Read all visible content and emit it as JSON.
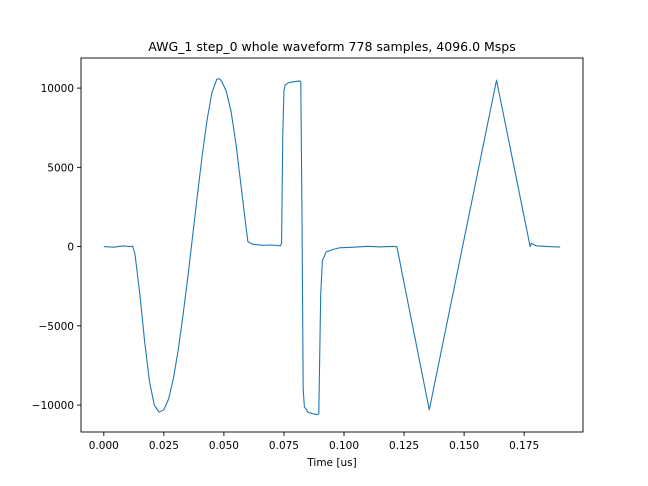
{
  "chart_data": {
    "type": "line",
    "title": "AWG_1 step_0 whole waveform 778 samples, 4096.0 Msps",
    "xlabel": "Time [us]",
    "ylabel": "",
    "xlim": [
      -0.0095,
      0.1995
    ],
    "ylim": [
      -11700,
      11900
    ],
    "x_ticks": [
      {
        "value": 0.0,
        "label": "0.000"
      },
      {
        "value": 0.025,
        "label": "0.025"
      },
      {
        "value": 0.05,
        "label": "0.050"
      },
      {
        "value": 0.075,
        "label": "0.075"
      },
      {
        "value": 0.1,
        "label": "0.100"
      },
      {
        "value": 0.125,
        "label": "0.125"
      },
      {
        "value": 0.15,
        "label": "0.150"
      },
      {
        "value": 0.175,
        "label": "0.175"
      }
    ],
    "y_ticks": [
      {
        "value": 10000,
        "label": "10000"
      },
      {
        "value": 5000,
        "label": "5000"
      },
      {
        "value": 0,
        "label": "0"
      },
      {
        "value": -5000,
        "label": "−5000"
      },
      {
        "value": -10000,
        "label": "−10000"
      }
    ],
    "grid": false,
    "series": [
      {
        "color": "#1f77b4",
        "points": [
          [
            0.0,
            0
          ],
          [
            0.004,
            -40
          ],
          [
            0.008,
            40
          ],
          [
            0.011,
            0
          ],
          [
            0.012,
            30
          ],
          [
            0.013,
            -500
          ],
          [
            0.015,
            -3000
          ],
          [
            0.017,
            -6000
          ],
          [
            0.019,
            -8500
          ],
          [
            0.021,
            -10000
          ],
          [
            0.023,
            -10450
          ],
          [
            0.025,
            -10300
          ],
          [
            0.027,
            -9600
          ],
          [
            0.029,
            -8300
          ],
          [
            0.031,
            -6500
          ],
          [
            0.033,
            -4300
          ],
          [
            0.035,
            -1900
          ],
          [
            0.037,
            700
          ],
          [
            0.039,
            3300
          ],
          [
            0.041,
            5800
          ],
          [
            0.043,
            8000
          ],
          [
            0.045,
            9700
          ],
          [
            0.047,
            10550
          ],
          [
            0.048,
            10600
          ],
          [
            0.049,
            10450
          ],
          [
            0.051,
            9800
          ],
          [
            0.053,
            8500
          ],
          [
            0.055,
            6500
          ],
          [
            0.057,
            4000
          ],
          [
            0.059,
            1500
          ],
          [
            0.06,
            300
          ],
          [
            0.062,
            150
          ],
          [
            0.066,
            80
          ],
          [
            0.07,
            100
          ],
          [
            0.0735,
            50
          ],
          [
            0.074,
            200
          ],
          [
            0.0745,
            7000
          ],
          [
            0.075,
            9800
          ],
          [
            0.0755,
            10200
          ],
          [
            0.077,
            10350
          ],
          [
            0.079,
            10400
          ],
          [
            0.0815,
            10450
          ],
          [
            0.082,
            10400
          ],
          [
            0.0825,
            2000
          ],
          [
            0.083,
            -9000
          ],
          [
            0.0835,
            -10100
          ],
          [
            0.085,
            -10450
          ],
          [
            0.087,
            -10550
          ],
          [
            0.089,
            -10600
          ],
          [
            0.0895,
            -10550
          ],
          [
            0.0903,
            -3000
          ],
          [
            0.091,
            -900
          ],
          [
            0.0925,
            -350
          ],
          [
            0.095,
            -200
          ],
          [
            0.098,
            -80
          ],
          [
            0.105,
            -30
          ],
          [
            0.11,
            20
          ],
          [
            0.115,
            -20
          ],
          [
            0.12,
            10
          ],
          [
            0.122,
            0
          ],
          [
            0.1355,
            -10300
          ],
          [
            0.1635,
            10500
          ],
          [
            0.1775,
            0
          ],
          [
            0.178,
            200
          ],
          [
            0.18,
            50
          ],
          [
            0.185,
            0
          ],
          [
            0.19,
            -30
          ]
        ]
      }
    ]
  }
}
